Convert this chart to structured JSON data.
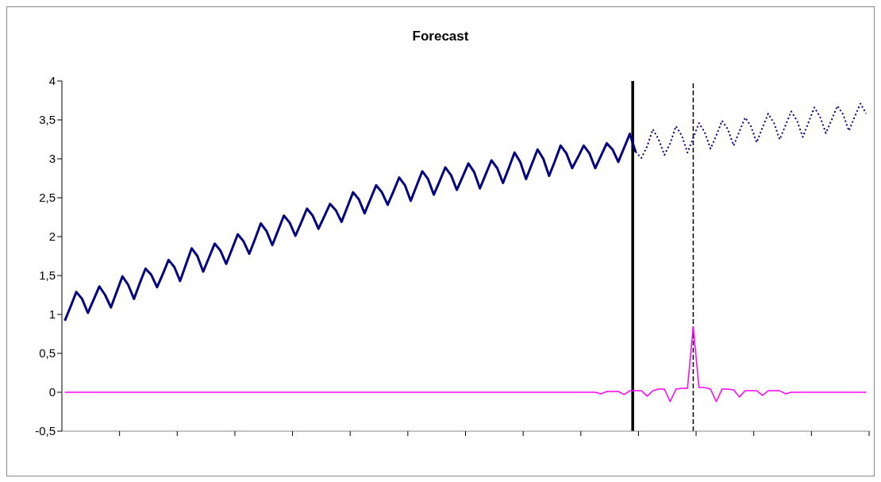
{
  "chart_data": {
    "type": "line",
    "title": "Forecast",
    "categories": [
      null,
      null,
      null,
      null,
      null,
      null,
      null,
      null,
      null,
      null,
      null,
      null,
      null,
      null,
      null,
      null,
      null,
      null,
      null,
      null,
      null,
      null,
      null,
      null,
      null,
      null,
      null,
      null,
      null,
      null,
      null,
      null,
      null,
      null,
      null,
      null,
      null,
      null,
      null,
      null,
      null,
      null,
      null,
      null,
      null,
      null,
      null,
      null,
      null,
      null,
      null,
      null,
      null,
      null,
      null,
      null,
      null,
      null,
      null,
      null,
      null,
      null,
      null,
      null,
      null,
      null,
      null,
      null,
      null,
      null,
      null,
      null,
      null,
      null,
      null,
      null,
      null,
      null,
      null,
      null,
      null,
      null,
      null,
      null,
      null,
      null,
      null,
      null,
      null,
      null,
      null,
      null,
      null,
      null,
      null,
      null,
      null,
      null,
      null,
      null,
      null,
      null,
      null,
      null,
      null,
      null,
      null,
      null,
      null,
      null,
      null,
      null,
      null,
      null,
      null,
      null,
      null,
      null,
      null,
      null,
      null,
      null,
      null,
      null,
      null,
      null,
      null,
      null,
      null,
      null,
      null,
      null,
      null,
      null,
      null,
      null,
      null,
      null,
      null,
      null
    ],
    "ylim": [
      -0.5,
      4
    ],
    "yticks": [
      {
        "value": -0.5,
        "label": "-0,5"
      },
      {
        "value": 0,
        "label": "0"
      },
      {
        "value": 0.5,
        "label": "0,5"
      },
      {
        "value": 1,
        "label": "1"
      },
      {
        "value": 1.5,
        "label": "1,5"
      },
      {
        "value": 2,
        "label": "2"
      },
      {
        "value": 2.5,
        "label": "2,5"
      },
      {
        "value": 3,
        "label": "3"
      },
      {
        "value": 3.5,
        "label": "3,5"
      },
      {
        "value": 4,
        "label": "4"
      }
    ],
    "tick_labels": "y",
    "series": [
      {
        "color": "#000080",
        "line_style": "solid",
        "values": [
          0.92,
          1.1,
          1.29,
          1.2,
          1.02,
          1.19,
          1.36,
          1.25,
          1.09,
          1.29,
          1.49,
          1.38,
          1.2,
          1.4,
          1.59,
          1.51,
          1.35,
          1.52,
          1.7,
          1.61,
          1.43,
          1.64,
          1.85,
          1.75,
          1.55,
          1.73,
          1.91,
          1.82,
          1.65,
          1.84,
          2.03,
          1.94,
          1.78,
          1.97,
          2.17,
          2.07,
          1.89,
          2.08,
          2.27,
          2.18,
          2.01,
          2.18,
          2.36,
          2.27,
          2.1,
          2.26,
          2.42,
          2.34,
          2.19,
          2.38,
          2.57,
          2.48,
          2.3,
          2.48,
          2.66,
          2.57,
          2.41,
          2.58,
          2.76,
          2.66,
          2.46,
          2.65,
          2.84,
          2.74,
          2.54,
          2.71,
          2.89,
          2.79,
          2.6,
          2.77,
          2.94,
          2.83,
          2.62,
          2.8,
          2.98,
          2.88,
          2.69,
          2.88,
          3.08,
          2.96,
          2.74,
          2.93,
          3.12,
          3.0,
          2.78,
          2.97,
          3.17,
          3.07,
          2.88,
          3.02,
          3.17,
          3.07,
          2.88,
          3.04,
          3.2,
          3.12,
          2.96,
          3.14,
          3.32,
          3.09,
          null,
          null,
          null,
          null,
          null,
          null,
          null,
          null,
          null,
          null,
          null,
          null,
          null,
          null,
          null,
          null,
          null,
          null,
          null,
          null,
          null,
          null,
          null,
          null,
          null,
          null,
          null,
          null,
          null,
          null,
          null,
          null,
          null,
          null,
          null,
          null,
          null,
          null,
          null,
          null
        ]
      },
      {
        "color": "#000080",
        "line_style": "dotted",
        "values": [
          null,
          null,
          null,
          null,
          null,
          null,
          null,
          null,
          null,
          null,
          null,
          null,
          null,
          null,
          null,
          null,
          null,
          null,
          null,
          null,
          null,
          null,
          null,
          null,
          null,
          null,
          null,
          null,
          null,
          null,
          null,
          null,
          null,
          null,
          null,
          null,
          null,
          null,
          null,
          null,
          null,
          null,
          null,
          null,
          null,
          null,
          null,
          null,
          null,
          null,
          null,
          null,
          null,
          null,
          null,
          null,
          null,
          null,
          null,
          null,
          null,
          null,
          null,
          null,
          null,
          null,
          null,
          null,
          null,
          null,
          null,
          null,
          null,
          null,
          null,
          null,
          null,
          null,
          null,
          null,
          null,
          null,
          null,
          null,
          null,
          null,
          null,
          null,
          null,
          null,
          null,
          null,
          null,
          null,
          null,
          null,
          null,
          null,
          null,
          3.09,
          3.01,
          3.16,
          3.38,
          3.25,
          3.05,
          3.2,
          3.42,
          3.3,
          3.08,
          3.27,
          3.46,
          3.34,
          3.13,
          3.3,
          3.49,
          3.38,
          3.17,
          3.35,
          3.53,
          3.42,
          3.21,
          3.4,
          3.58,
          3.46,
          3.25,
          3.43,
          3.61,
          3.49,
          3.28,
          3.47,
          3.66,
          3.54,
          3.33,
          3.5,
          3.68,
          3.57,
          3.36,
          3.54,
          3.71,
          3.58
        ]
      },
      {
        "color": "#ff00ff",
        "line_style": "solid",
        "values": [
          0,
          0,
          0,
          0,
          0,
          0,
          0,
          0,
          0,
          0,
          0,
          0,
          0,
          0,
          0,
          0,
          0,
          0,
          0,
          0,
          0,
          0,
          0,
          0,
          0,
          0,
          0,
          0,
          0,
          0,
          0,
          0,
          0,
          0,
          0,
          0,
          0,
          0,
          0,
          0,
          0,
          0,
          0,
          0,
          0,
          0,
          0,
          0,
          0,
          0,
          0,
          0,
          0,
          0,
          0,
          0,
          0,
          0,
          0,
          0,
          0,
          0,
          0,
          0,
          0,
          0,
          0,
          0,
          0,
          0,
          0,
          0,
          0,
          0,
          0,
          0,
          0,
          0,
          0,
          0,
          0,
          0,
          0,
          0,
          0,
          0,
          0,
          0,
          0,
          0,
          0,
          0,
          0,
          -0.02,
          0.01,
          0.01,
          0.01,
          -0.03,
          0.02,
          0.02,
          0.02,
          -0.05,
          0.02,
          0.04,
          0.04,
          -0.12,
          0.04,
          0.05,
          0.05,
          0.84,
          0.06,
          0.06,
          0.04,
          -0.12,
          0.04,
          0.04,
          0.03,
          -0.06,
          0.02,
          0.02,
          0.02,
          -0.04,
          0.02,
          0.02,
          0.02,
          -0.02,
          0,
          0,
          0,
          0,
          0,
          0,
          0,
          0,
          0,
          0,
          0,
          0,
          0,
          0
        ]
      }
    ]
  }
}
